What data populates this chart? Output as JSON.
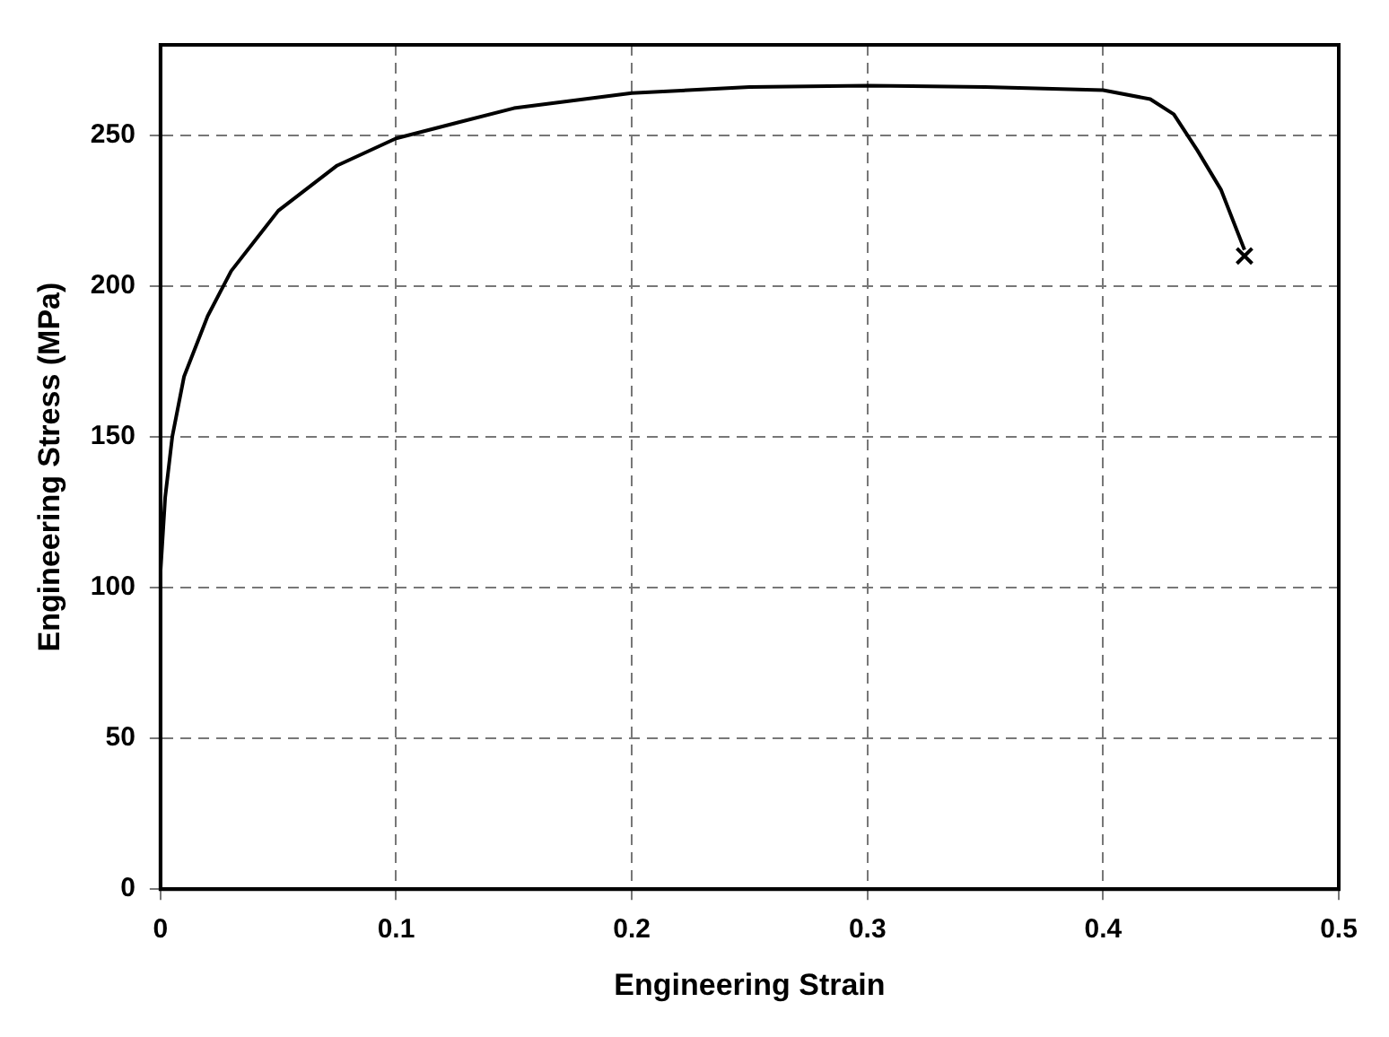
{
  "chart_data": {
    "type": "line",
    "xlabel": "Engineering Strain",
    "ylabel": "Engineering Stress (MPa)",
    "xlim": [
      0,
      0.5
    ],
    "ylim": [
      0,
      280
    ],
    "xticks": [
      0,
      0.1,
      0.2,
      0.3,
      0.4,
      0.5
    ],
    "yticks": [
      0,
      50,
      100,
      150,
      200,
      250
    ],
    "grid": true,
    "legend": false,
    "marker": "none",
    "line_style": "solid",
    "series": [
      {
        "color": "#000000",
        "x": [
          0,
          0.002,
          0.005,
          0.01,
          0.02,
          0.03,
          0.05,
          0.075,
          0.1,
          0.15,
          0.2,
          0.25,
          0.3,
          0.35,
          0.4,
          0.42,
          0.43,
          0.44,
          0.45,
          0.46
        ],
        "values": [
          105,
          130,
          150,
          170,
          190,
          205,
          225,
          240,
          249,
          259,
          264,
          266,
          266.5,
          266,
          265,
          262,
          257,
          245,
          232,
          212
        ]
      },
      {
        "type": "scatter",
        "marker": "cross",
        "color": "#000000",
        "x": [
          0.46
        ],
        "values": [
          210
        ]
      }
    ]
  }
}
